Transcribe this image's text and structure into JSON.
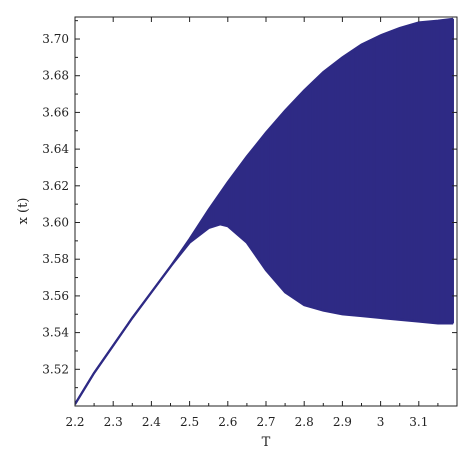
{
  "chart_data": {
    "type": "line",
    "title": "",
    "xlabel": "T",
    "ylabel": "x (t)",
    "xlim": [
      2.2,
      3.2
    ],
    "ylim": [
      3.5,
      3.712
    ],
    "grid": false,
    "legend": "none",
    "colors": {
      "series": "#2e2a85",
      "frame": "#222222"
    },
    "x_ticks": [
      2.2,
      2.3,
      2.4,
      2.5,
      2.6,
      2.7,
      2.8,
      2.9,
      3.0,
      3.1
    ],
    "x_tick_labels": [
      "2.2",
      "2.3",
      "2.4",
      "2.5",
      "2.6",
      "2.7",
      "2.8",
      "2.9",
      "3",
      "3.1"
    ],
    "y_ticks": [
      3.52,
      3.54,
      3.56,
      3.58,
      3.6,
      3.62,
      3.64,
      3.66,
      3.68,
      3.7
    ],
    "y_tick_labels": [
      "3.52",
      "3.54",
      "3.56",
      "3.58",
      "3.60",
      "3.62",
      "3.64",
      "3.66",
      "3.68",
      "3.70"
    ],
    "series": [
      {
        "role": "upper-envelope",
        "x": [
          2.2,
          2.25,
          2.3,
          2.35,
          2.4,
          2.45,
          2.5,
          2.55,
          2.6,
          2.65,
          2.7,
          2.75,
          2.8,
          2.85,
          2.9,
          2.95,
          3.0,
          3.05,
          3.1,
          3.15,
          3.19
        ],
        "y": [
          3.501,
          3.518,
          3.533,
          3.548,
          3.562,
          3.576,
          3.591,
          3.607,
          3.622,
          3.636,
          3.649,
          3.661,
          3.672,
          3.682,
          3.69,
          3.697,
          3.702,
          3.706,
          3.709,
          3.71,
          3.711
        ]
      },
      {
        "role": "lower-envelope",
        "x": [
          2.2,
          2.25,
          2.3,
          2.35,
          2.4,
          2.45,
          2.5,
          2.55,
          2.58,
          2.6,
          2.65,
          2.7,
          2.75,
          2.8,
          2.85,
          2.9,
          2.95,
          3.0,
          3.05,
          3.1,
          3.15,
          3.19
        ],
        "y": [
          3.501,
          3.518,
          3.533,
          3.548,
          3.562,
          3.576,
          3.589,
          3.597,
          3.599,
          3.598,
          3.589,
          3.574,
          3.562,
          3.555,
          3.552,
          3.55,
          3.549,
          3.548,
          3.547,
          3.546,
          3.545,
          3.545
        ]
      }
    ]
  }
}
